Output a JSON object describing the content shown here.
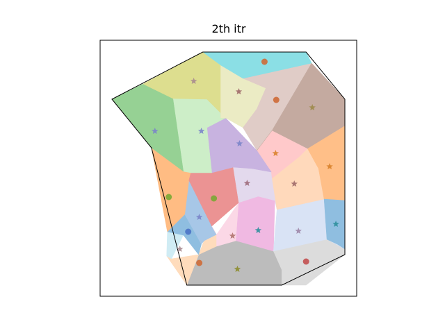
{
  "chart_data": {
    "type": "scatter",
    "title": "2th itr",
    "xlabel": "",
    "ylabel": "",
    "grid": false,
    "xlim": [
      0,
      370
    ],
    "ylim": [
      0,
      369
    ],
    "outline": [
      [
        17,
        284
      ],
      [
        148,
        352
      ],
      [
        297,
        352
      ],
      [
        353,
        284
      ],
      [
        353,
        60
      ],
      [
        262,
        16
      ],
      [
        125,
        16
      ],
      [
        74,
        214
      ]
    ],
    "cells": [
      {
        "color": "#bcbcbc",
        "polygon": [
          [
            125,
            16
          ],
          [
            262,
            16
          ],
          [
            262,
            38
          ],
          [
            250,
            65
          ],
          [
            196,
            80
          ],
          [
            150,
            80
          ]
        ]
      },
      {
        "color": "#dcdcdc",
        "polygon": [
          [
            262,
            16
          ],
          [
            297,
            16
          ],
          [
            353,
            60
          ],
          [
            353,
            68
          ],
          [
            327,
            82
          ],
          [
            250,
            65
          ],
          [
            262,
            38
          ]
        ]
      },
      {
        "color": "#ffdcbc",
        "polygon": [
          [
            125,
            16
          ],
          [
            150,
            80
          ],
          [
            168,
            89
          ],
          [
            168,
            72
          ],
          [
            142,
            60
          ],
          [
            103,
            54
          ],
          [
            96,
            58
          ]
        ]
      },
      {
        "color": "#d0ecf4",
        "polygon": [
          [
            96,
            58
          ],
          [
            103,
            54
          ],
          [
            120,
            88
          ],
          [
            97,
            93
          ]
        ]
      },
      {
        "color": "#8fbee0",
        "polygon": [
          [
            97,
            93
          ],
          [
            120,
            88
          ],
          [
            142,
            60
          ],
          [
            146,
            75
          ],
          [
            122,
            118
          ]
        ]
      },
      {
        "color": "#a7c7e7",
        "polygon": [
          [
            122,
            118
          ],
          [
            146,
            75
          ],
          [
            150,
            80
          ],
          [
            168,
            89
          ],
          [
            161,
            101
          ],
          [
            128,
            167
          ]
        ]
      },
      {
        "color": "#ffbc83",
        "polygon": [
          [
            74,
            214
          ],
          [
            97,
            93
          ],
          [
            122,
            118
          ],
          [
            128,
            167
          ],
          [
            131,
            178
          ],
          [
            120,
            180
          ]
        ]
      },
      {
        "color": "#fbd8e6",
        "polygon": [
          [
            161,
            101
          ],
          [
            168,
            89
          ],
          [
            168,
            72
          ],
          [
            196,
            80
          ],
          [
            200,
            135
          ],
          [
            168,
            89
          ]
        ]
      },
      {
        "color": "#f0b9e2",
        "polygon": [
          [
            196,
            80
          ],
          [
            250,
            65
          ],
          [
            252,
            138
          ],
          [
            228,
            144
          ],
          [
            200,
            135
          ]
        ]
      },
      {
        "color": "#d9e3f5",
        "polygon": [
          [
            250,
            65
          ],
          [
            327,
            82
          ],
          [
            353,
            68
          ],
          [
            353,
            138
          ],
          [
            323,
            140
          ],
          [
            255,
            125
          ]
        ]
      },
      {
        "color": "#eb9393",
        "polygon": [
          [
            128,
            167
          ],
          [
            161,
            101
          ],
          [
            200,
            135
          ],
          [
            192,
            186
          ],
          [
            161,
            178
          ],
          [
            131,
            178
          ]
        ]
      },
      {
        "color": "#e3d9ed",
        "polygon": [
          [
            192,
            186
          ],
          [
            200,
            135
          ],
          [
            228,
            144
          ],
          [
            252,
            138
          ],
          [
            255,
            125
          ],
          [
            248,
            170
          ],
          [
            247,
            179
          ],
          [
            219,
            184
          ]
        ]
      },
      {
        "color": "#ffd9bb",
        "polygon": [
          [
            255,
            125
          ],
          [
            323,
            140
          ],
          [
            315,
            184
          ],
          [
            299,
            213
          ],
          [
            287,
            201
          ],
          [
            248,
            170
          ]
        ]
      },
      {
        "color": "#ffbf88",
        "polygon": [
          [
            323,
            140
          ],
          [
            353,
            138
          ],
          [
            353,
            246
          ],
          [
            299,
            213
          ],
          [
            315,
            184
          ]
        ]
      },
      {
        "color": "#8fbee0",
        "polygon": [
          [
            353,
            138
          ],
          [
            353,
            68
          ],
          [
            342,
            75
          ],
          [
            327,
            82
          ],
          [
            323,
            140
          ]
        ]
      },
      {
        "color": "#ffc9ca",
        "polygon": [
          [
            247,
            179
          ],
          [
            248,
            170
          ],
          [
            287,
            201
          ],
          [
            299,
            213
          ],
          [
            248,
            239
          ],
          [
            226,
            210
          ]
        ]
      },
      {
        "color": "#c8b3e0",
        "polygon": [
          [
            161,
            178
          ],
          [
            192,
            186
          ],
          [
            219,
            184
          ],
          [
            247,
            179
          ],
          [
            226,
            210
          ],
          [
            181,
            257
          ],
          [
            154,
            243
          ]
        ]
      },
      {
        "color": "#cdeec8",
        "polygon": [
          [
            131,
            178
          ],
          [
            161,
            178
          ],
          [
            154,
            243
          ],
          [
            181,
            257
          ],
          [
            154,
            284
          ],
          [
            105,
            285
          ],
          [
            120,
            180
          ]
        ]
      },
      {
        "color": "#96d194",
        "polygon": [
          [
            17,
            284
          ],
          [
            62,
            306
          ],
          [
            105,
            285
          ],
          [
            120,
            180
          ],
          [
            74,
            214
          ],
          [
            17,
            284
          ]
        ]
      },
      {
        "color": "#ddde8f",
        "polygon": [
          [
            62,
            306
          ],
          [
            148,
            352
          ],
          [
            174,
            333
          ],
          [
            174,
            257
          ],
          [
            181,
            257
          ],
          [
            154,
            284
          ],
          [
            105,
            285
          ]
        ]
      },
      {
        "color": "#ebebc4",
        "polygon": [
          [
            174,
            333
          ],
          [
            174,
            257
          ],
          [
            181,
            257
          ],
          [
            206,
            243
          ],
          [
            226,
            270
          ],
          [
            239,
            300
          ],
          [
            206,
            314
          ]
        ]
      },
      {
        "color": "#e0ccc7",
        "polygon": [
          [
            206,
            314
          ],
          [
            239,
            300
          ],
          [
            226,
            270
          ],
          [
            206,
            243
          ],
          [
            226,
            210
          ],
          [
            248,
            239
          ],
          [
            305,
            336
          ],
          [
            297,
            336
          ]
        ]
      },
      {
        "color": "#c4aaa0",
        "polygon": [
          [
            305,
            336
          ],
          [
            248,
            239
          ],
          [
            226,
            210
          ],
          [
            248,
            239
          ],
          [
            299,
            213
          ],
          [
            353,
            246
          ],
          [
            353,
            284
          ]
        ]
      },
      {
        "color": "#8bdfe5",
        "polygon": [
          [
            148,
            352
          ],
          [
            297,
            352
          ],
          [
            305,
            336
          ],
          [
            206,
            314
          ],
          [
            174,
            333
          ]
        ]
      }
    ],
    "points": [
      {
        "x": 198,
        "y": 39,
        "marker": "star",
        "color": "#8c8c2b"
      },
      {
        "x": 143,
        "y": 48,
        "marker": "circle",
        "color": "#ce6a36"
      },
      {
        "x": 297,
        "y": 50,
        "marker": "circle",
        "color": "#c24f4f"
      },
      {
        "x": 115,
        "y": 68,
        "marker": "star",
        "color": "#a78a8f"
      },
      {
        "x": 127,
        "y": 93,
        "marker": "circle",
        "color": "#4b73c6"
      },
      {
        "x": 143,
        "y": 114,
        "marker": "star",
        "color": "#7a84c9"
      },
      {
        "x": 191,
        "y": 87,
        "marker": "star",
        "color": "#b0746e"
      },
      {
        "x": 228,
        "y": 95,
        "marker": "star",
        "color": "#2c8f9c"
      },
      {
        "x": 286,
        "y": 94,
        "marker": "star",
        "color": "#9d86a9"
      },
      {
        "x": 340,
        "y": 104,
        "marker": "star",
        "color": "#2c8f9c"
      },
      {
        "x": 99,
        "y": 143,
        "marker": "circle",
        "color": "#7aa934"
      },
      {
        "x": 164,
        "y": 141,
        "marker": "circle",
        "color": "#7aa934"
      },
      {
        "x": 212,
        "y": 163,
        "marker": "star",
        "color": "#9d6a7a"
      },
      {
        "x": 280,
        "y": 162,
        "marker": "star",
        "color": "#a06a6a"
      },
      {
        "x": 331,
        "y": 187,
        "marker": "star",
        "color": "#d9822b"
      },
      {
        "x": 253,
        "y": 206,
        "marker": "star",
        "color": "#d9822b"
      },
      {
        "x": 201,
        "y": 220,
        "marker": "star",
        "color": "#7a84c9"
      },
      {
        "x": 146,
        "y": 238,
        "marker": "star",
        "color": "#7a84c9"
      },
      {
        "x": 79,
        "y": 238,
        "marker": "star",
        "color": "#7a84c9"
      },
      {
        "x": 306,
        "y": 272,
        "marker": "star",
        "color": "#9d8a4a"
      },
      {
        "x": 135,
        "y": 310,
        "marker": "star",
        "color": "#a78a8f"
      },
      {
        "x": 200,
        "y": 295,
        "marker": "star",
        "color": "#a06a6a"
      },
      {
        "x": 254,
        "y": 283,
        "marker": "circle",
        "color": "#ce6a36"
      },
      {
        "x": 237,
        "y": 338,
        "marker": "circle",
        "color": "#ce6a36"
      }
    ]
  }
}
